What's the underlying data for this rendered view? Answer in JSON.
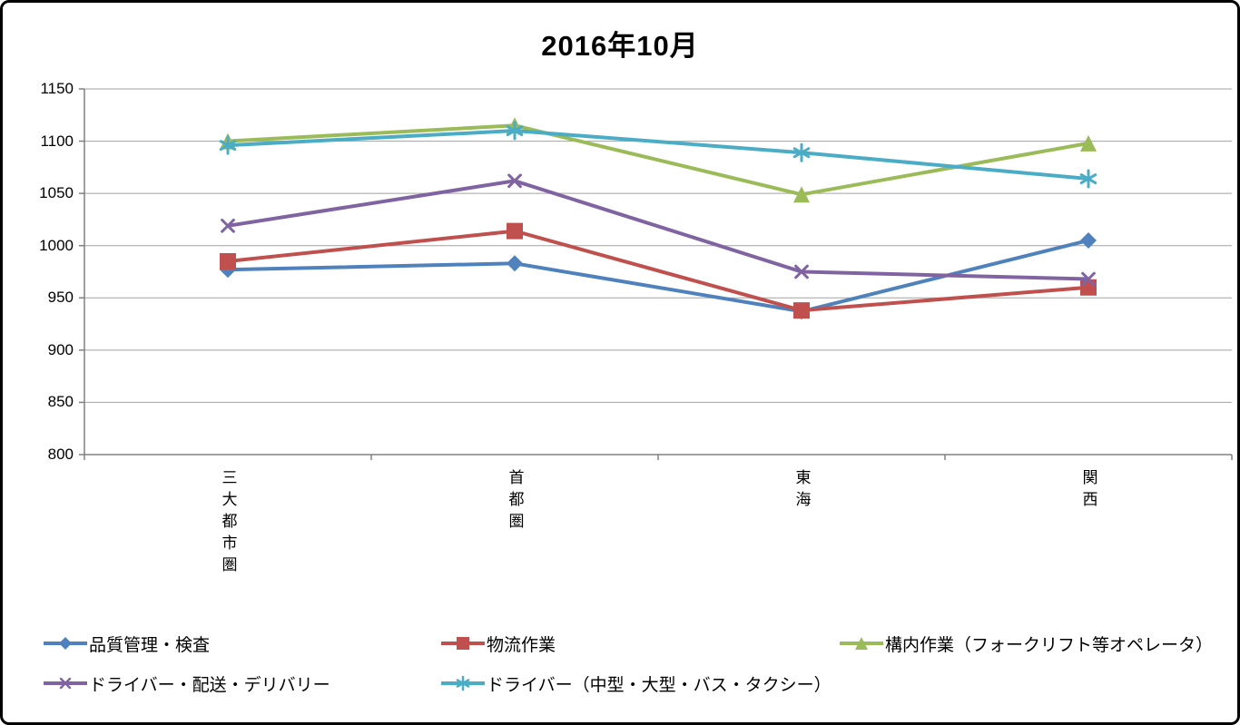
{
  "title": "2016年10月",
  "chart_data": {
    "type": "line",
    "title": "2016年10月",
    "categories": [
      "三大都市圏",
      "首都圏",
      "東海",
      "関西"
    ],
    "series": [
      {
        "name": "品質管理・検査",
        "marker": "diamond",
        "color": "#4F81BD",
        "values": [
          977,
          983,
          937,
          1005
        ]
      },
      {
        "name": "物流作業",
        "marker": "square",
        "color": "#C0504D",
        "values": [
          985,
          1014,
          938,
          960
        ]
      },
      {
        "name": "構内作業（フォークリフト等オペレータ）",
        "marker": "triangle",
        "color": "#9BBB59",
        "values": [
          1100,
          1115,
          1049,
          1098
        ]
      },
      {
        "name": "ドライバー・配送・デリバリー",
        "marker": "x",
        "color": "#8064A2",
        "values": [
          1019,
          1062,
          975,
          968
        ]
      },
      {
        "name": "ドライバー（中型・大型・バス・タクシー）",
        "marker": "asterisk",
        "color": "#4BACC6",
        "values": [
          1096,
          1110,
          1089,
          1064
        ]
      }
    ],
    "ylim": [
      800,
      1150
    ],
    "yticks": [
      800,
      850,
      900,
      950,
      1000,
      1050,
      1100,
      1150
    ],
    "grid": true,
    "legend_position": "bottom-left, two rows",
    "axis_color": "#808080",
    "gridline_color": "#A3A3A3"
  }
}
